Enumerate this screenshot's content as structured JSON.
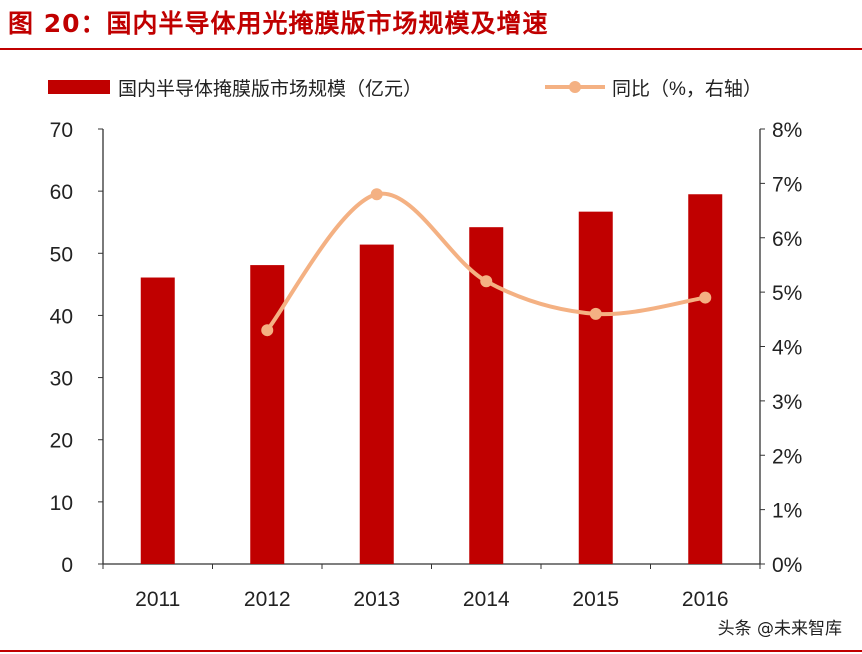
{
  "figure_title": "图 20：国内半导体用光掩膜版市场规模及增速",
  "watermark": "头条 @未来智库",
  "chart_data": {
    "type": "bar+line",
    "categories": [
      "2011",
      "2012",
      "2013",
      "2014",
      "2015",
      "2016"
    ],
    "series": [
      {
        "name": "国内半导体掩膜版市场规模（亿元）",
        "type": "bar",
        "axis": "left",
        "color": "#c00000",
        "values": [
          46.1,
          48.1,
          51.4,
          54.2,
          56.7,
          59.5
        ]
      },
      {
        "name": "同比（%，右轴）",
        "type": "line",
        "axis": "right",
        "color": "#f4b183",
        "smooth": true,
        "values": [
          null,
          4.3,
          6.8,
          5.2,
          4.6,
          4.9
        ]
      }
    ],
    "y_left": {
      "range": [
        0,
        70
      ],
      "ticks": [
        "0",
        "10",
        "20",
        "30",
        "40",
        "50",
        "60",
        "70"
      ]
    },
    "y_right": {
      "range": [
        0,
        8
      ],
      "ticks": [
        "0%",
        "1%",
        "2%",
        "3%",
        "4%",
        "5%",
        "6%",
        "7%",
        "8%"
      ]
    },
    "grid": false,
    "legend_position": "top"
  }
}
